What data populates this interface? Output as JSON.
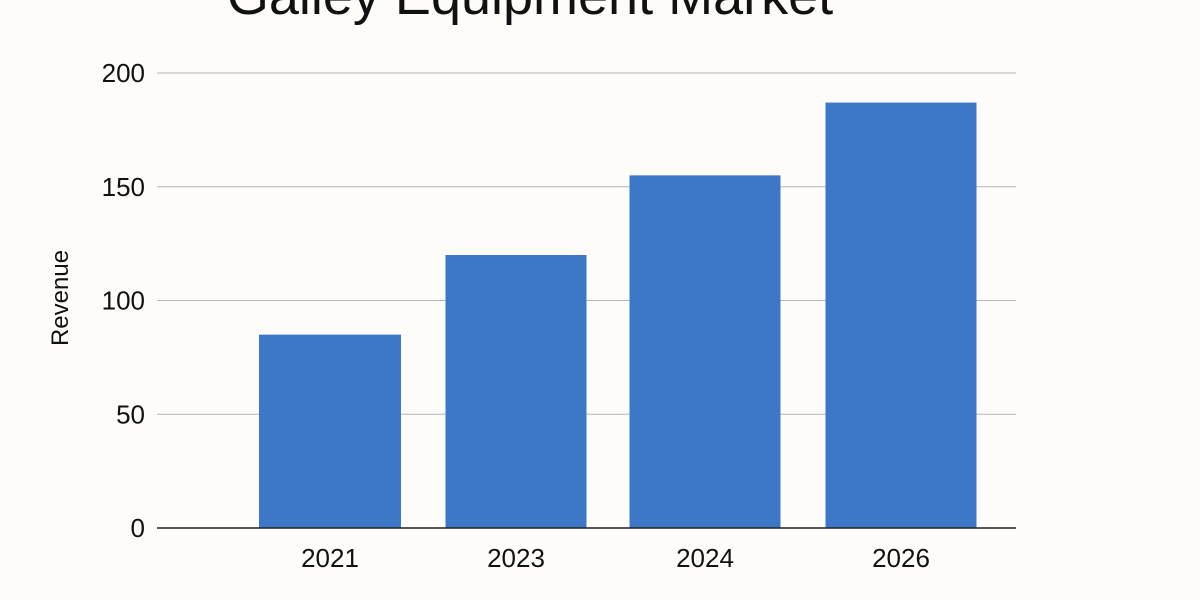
{
  "chart_data": {
    "type": "bar",
    "title": "Galley Equipment Market",
    "xlabel": "",
    "ylabel": "Revenue",
    "categories": [
      "2021",
      "2023",
      "2024",
      "2026"
    ],
    "values": [
      85,
      120,
      155,
      187
    ],
    "ylim": [
      0,
      200
    ],
    "yticks": [
      0,
      50,
      100,
      150,
      200
    ],
    "grid": true,
    "legend": "none",
    "bar_color": "#3d78c8"
  }
}
